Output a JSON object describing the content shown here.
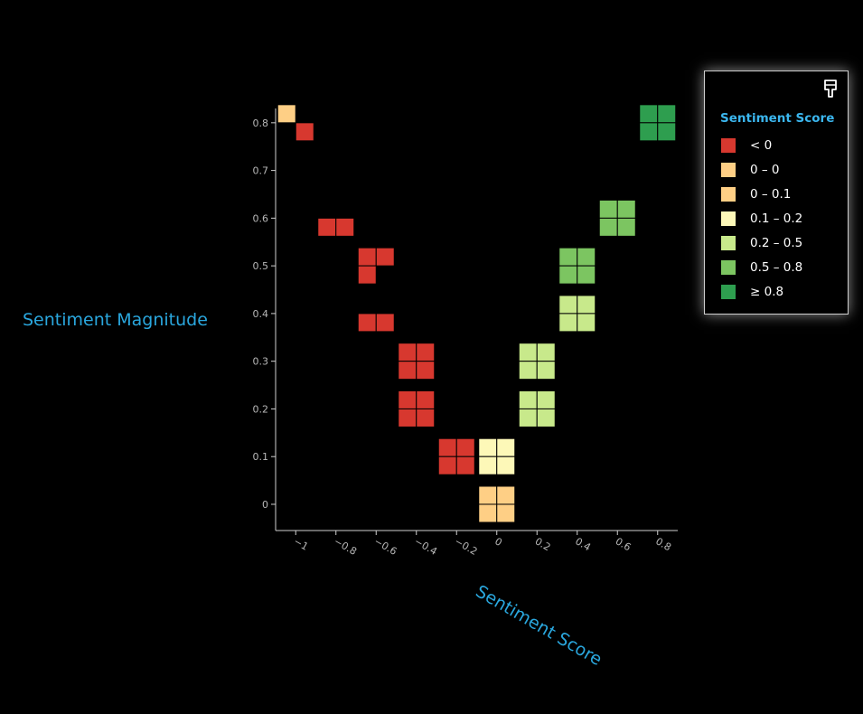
{
  "chart_data": {
    "type": "heatmap",
    "xlabel": "Sentiment Score",
    "ylabel": "Sentiment Magnitude",
    "x_ticks": [
      "−1",
      "−0.8",
      "−0.6",
      "−0.4",
      "−0.2",
      "0",
      "0.2",
      "0.4",
      "0.6",
      "0.8"
    ],
    "x_tick_values": [
      -1,
      -0.8,
      -0.6,
      -0.4,
      -0.2,
      0,
      0.2,
      0.4,
      0.6,
      0.8
    ],
    "y_ticks": [
      "0",
      "0.1",
      "0.2",
      "0.3",
      "0.4",
      "0.5",
      "0.6",
      "0.7",
      "0.8"
    ],
    "y_tick_values": [
      0,
      0.1,
      0.2,
      0.3,
      0.4,
      0.5,
      0.6,
      0.7,
      0.8
    ],
    "xlim": [
      -1.1,
      0.9
    ],
    "ylim": [
      -0.055,
      0.83
    ],
    "clusters": [
      {
        "x": 0.8,
        "y": 0.8,
        "color": "#2e9e4f",
        "cells": [
          1,
          1,
          1,
          1
        ]
      },
      {
        "x": 0.6,
        "y": 0.6,
        "color": "#7cc561",
        "cells": [
          1,
          1,
          1,
          1
        ]
      },
      {
        "x": 0.4,
        "y": 0.5,
        "color": "#7cc561",
        "cells": [
          1,
          1,
          1,
          1
        ]
      },
      {
        "x": 0.4,
        "y": 0.4,
        "color": "#c8e98b",
        "cells": [
          1,
          1,
          1,
          1
        ]
      },
      {
        "x": 0.2,
        "y": 0.3,
        "color": "#c8e98b",
        "cells": [
          1,
          1,
          1,
          1
        ]
      },
      {
        "x": 0.2,
        "y": 0.2,
        "color": "#c8e98b",
        "cells": [
          1,
          1,
          1,
          1
        ]
      },
      {
        "x": 0,
        "y": 0.1,
        "color": "#fdf8b8",
        "cells": [
          1,
          1,
          1,
          1
        ]
      },
      {
        "x": 0,
        "y": 0,
        "color": "#fecf85",
        "cells": [
          1,
          1,
          1,
          1
        ]
      },
      {
        "x": -0.2,
        "y": 0.1,
        "color": "#d7382f",
        "cells": [
          1,
          1,
          1,
          1
        ]
      },
      {
        "x": -0.4,
        "y": 0.2,
        "color": "#d7382f",
        "cells": [
          1,
          1,
          1,
          1
        ]
      },
      {
        "x": -0.4,
        "y": 0.3,
        "color": "#d7382f",
        "cells": [
          1,
          1,
          1,
          1
        ]
      },
      {
        "x": -0.6,
        "y": 0.4,
        "color": "#d7382f",
        "cells": [
          0,
          0,
          1,
          1
        ]
      },
      {
        "x": -0.6,
        "y": 0.5,
        "color": "#d7382f",
        "cells": [
          1,
          1,
          1,
          0
        ]
      },
      {
        "x": -0.8,
        "y": 0.6,
        "color": "#d7382f",
        "cells": [
          0,
          0,
          1,
          1
        ]
      },
      {
        "x": -1,
        "y": 0.8,
        "color": "#d7382f",
        "cells": [
          0,
          0,
          0,
          1
        ]
      },
      {
        "x": -1,
        "y": 0.8,
        "color": "#fecf85",
        "cells": [
          1,
          0,
          0,
          0
        ]
      }
    ]
  },
  "legend": {
    "title": "Sentiment Score",
    "items": [
      {
        "label": "< 0",
        "color": "#d7382f"
      },
      {
        "label": "0 – 0",
        "color": "#fecf85"
      },
      {
        "label": "0 – 0.1",
        "color": "#fecf85"
      },
      {
        "label": "0.1 – 0.2",
        "color": "#fdf8b8"
      },
      {
        "label": "0.2 – 0.5",
        "color": "#c8e98b"
      },
      {
        "label": "0.5 – 0.8",
        "color": "#7cc561"
      },
      {
        "label": "≥ 0.8",
        "color": "#2e9e4f"
      }
    ],
    "pin_icon": "pin-icon"
  }
}
